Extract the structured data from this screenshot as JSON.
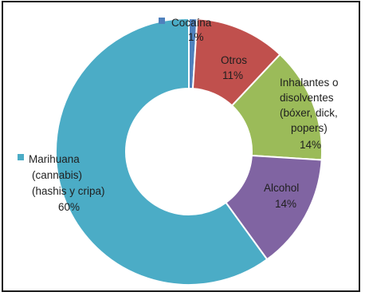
{
  "chart_data": {
    "type": "pie",
    "donut": true,
    "title": "",
    "slices": [
      {
        "label": "Cocaína",
        "value": 1,
        "color": "#4f81bd",
        "pct": "1%"
      },
      {
        "label": "Otros",
        "value": 11,
        "color": "#c0504d",
        "pct": "11%"
      },
      {
        "label": "Inhalantes o disolventes (bóxer, dick, popers)",
        "value": 14,
        "color": "#9bbb59",
        "pct": "14%"
      },
      {
        "label": "Alcohol",
        "value": 14,
        "color": "#8064a2",
        "pct": "14%"
      },
      {
        "label": "Marihuana (cannabis) (hashis y cripa)",
        "value": 60,
        "color": "#4bacc6",
        "pct": "60%"
      }
    ]
  },
  "labels": {
    "cocaina": {
      "name": "Cocaína",
      "pct": "1%"
    },
    "otros": {
      "name": "Otros",
      "pct": "11%"
    },
    "inhalantes": {
      "line1": "Inhalantes o",
      "line2": "disolventes",
      "line3": "(bóxer, dick,",
      "line4": "popers)",
      "pct": "14%"
    },
    "alcohol": {
      "name": "Alcohol",
      "pct": "14%"
    },
    "marihuana": {
      "line1": "Marihuana",
      "line2": "(cannabis)",
      "line3": "(hashis y cripa)",
      "pct": "60%"
    }
  }
}
